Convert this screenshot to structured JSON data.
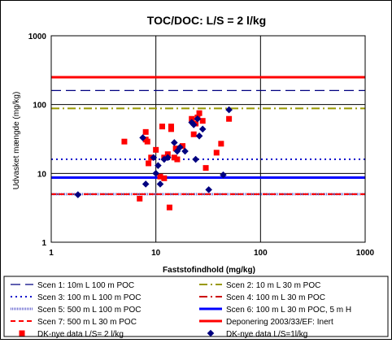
{
  "chart_data": {
    "type": "scatter",
    "title": "TOC/DOC: L/S = 2 l/kg",
    "xlabel": "Faststofindhold (mg/kg)",
    "ylabel": "Udvasket mængde (mg/kg)",
    "xscale": "log",
    "yscale": "log",
    "xlim": [
      1,
      1000
    ],
    "ylim": [
      1,
      1000
    ],
    "x_ticks": [
      "1",
      "10",
      "100",
      "1000"
    ],
    "y_ticks": [
      "1",
      "10",
      "100",
      "1000"
    ],
    "grid": "major",
    "legend_position": "bottom",
    "reference_lines": [
      {
        "name": "Scen 1: 10m L 100 m POC",
        "y": 160,
        "color": "#000080",
        "style": "long-dash"
      },
      {
        "name": "Scen 2: 10 m L 30 m POC",
        "y": 88,
        "color": "#999900",
        "style": "dash-dot"
      },
      {
        "name": "Scen 3: 100 m L 100 m POC",
        "y": 16,
        "color": "#0000cc",
        "style": "dotted"
      },
      {
        "name": "Scen 4: 100 m L 30 m POC",
        "y": 5,
        "color": "#cc0000",
        "style": "dash-dot"
      },
      {
        "name": "Scen 5: 500 m L 100 m POC",
        "y": 5,
        "color": "#6a6ad0",
        "style": "hatched"
      },
      {
        "name": "Scen 6: 100 m L 30 m POC, 5 m H",
        "y": 8.7,
        "color": "#0000ff",
        "style": "solid"
      },
      {
        "name": "Scen 7: 500 m L 30 m POC",
        "y": 5,
        "color": "#ff0000",
        "style": "dashed"
      },
      {
        "name": "Deponering 2003/33/EF: Inert",
        "y": 250,
        "color": "#ff0000",
        "style": "solid"
      }
    ],
    "series": [
      {
        "name": "DK-nye data L/S= 2 l/kg",
        "marker": "square",
        "color": "#ff0000",
        "points": [
          [
            5,
            29
          ],
          [
            8,
            40
          ],
          [
            8,
            31
          ],
          [
            8.3,
            29
          ],
          [
            7,
            4.3
          ],
          [
            8.5,
            14
          ],
          [
            9,
            17
          ],
          [
            10,
            22
          ],
          [
            11,
            9
          ],
          [
            11.5,
            48
          ],
          [
            12,
            8.5
          ],
          [
            12,
            17
          ],
          [
            13,
            19
          ],
          [
            13.5,
            3.2
          ],
          [
            14,
            44
          ],
          [
            14,
            48
          ],
          [
            15,
            17
          ],
          [
            15.5,
            23
          ],
          [
            16,
            16
          ],
          [
            18,
            25
          ],
          [
            22,
            62
          ],
          [
            23,
            37
          ],
          [
            24,
            53
          ],
          [
            25,
            65
          ],
          [
            26,
            75
          ],
          [
            28,
            58
          ],
          [
            30,
            12
          ],
          [
            38,
            20
          ],
          [
            42,
            27
          ],
          [
            50,
            62
          ]
        ]
      },
      {
        "name": "DK-nye data L/S=1l/kg",
        "marker": "diamond",
        "color": "#000080",
        "points": [
          [
            1.8,
            4.9
          ],
          [
            7.5,
            33
          ],
          [
            8,
            7
          ],
          [
            9.5,
            17
          ],
          [
            10,
            10
          ],
          [
            10.5,
            13
          ],
          [
            11,
            7
          ],
          [
            12,
            16
          ],
          [
            13,
            17
          ],
          [
            15,
            28
          ],
          [
            16,
            21
          ],
          [
            17,
            24
          ],
          [
            19,
            21
          ],
          [
            22,
            55
          ],
          [
            23,
            51
          ],
          [
            24,
            16
          ],
          [
            25,
            62
          ],
          [
            26,
            35
          ],
          [
            28,
            44
          ],
          [
            32,
            5.8
          ],
          [
            44,
            9.5
          ],
          [
            50,
            84
          ]
        ]
      }
    ]
  }
}
